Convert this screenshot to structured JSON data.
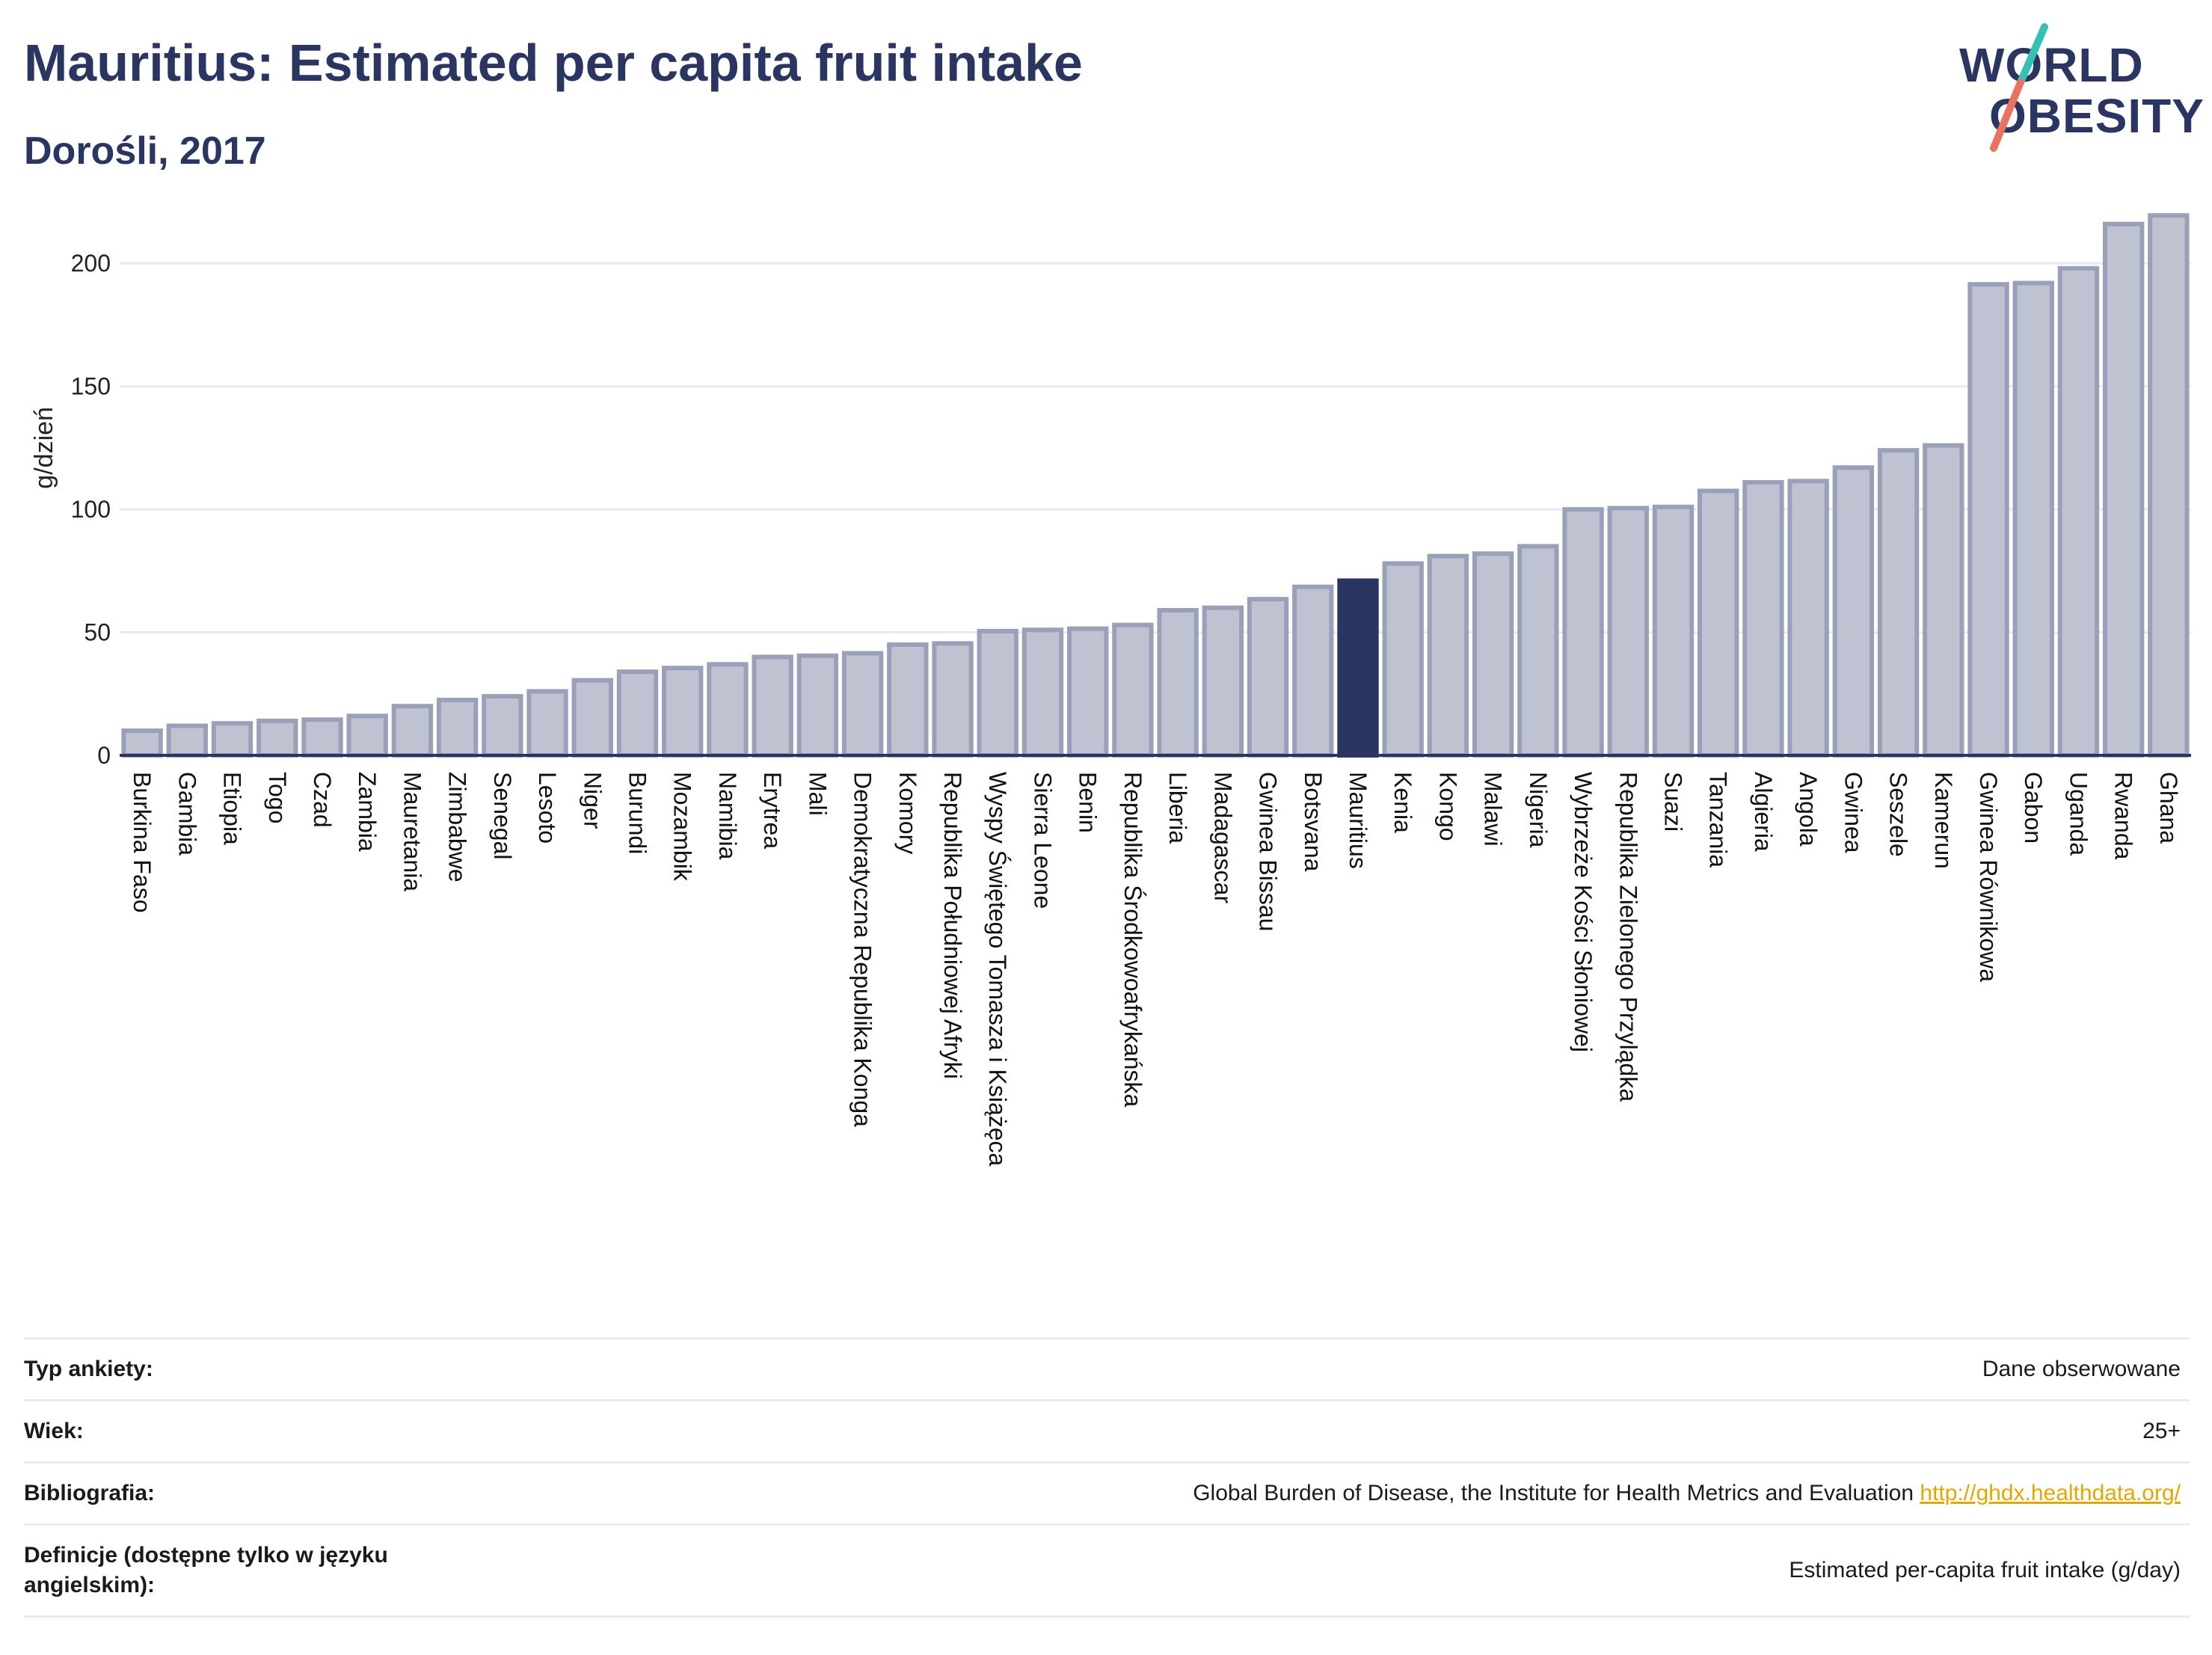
{
  "header": {
    "title": "Mauritius: Estimated per capita fruit intake",
    "subtitle": "Dorośli, 2017"
  },
  "logo": {
    "line1": "WORLD",
    "line2": "OBESITY",
    "colors": {
      "text": "#2b3562",
      "slash_top": "#35c0b6",
      "slash_bottom": "#e8735f"
    }
  },
  "chart_data": {
    "type": "bar",
    "title": "",
    "xlabel": "",
    "ylabel": "g/dzień",
    "ylim": [
      0,
      225
    ],
    "yticks": [
      0,
      50,
      100,
      150,
      200
    ],
    "grid": true,
    "highlight": "Mauritius",
    "colors": {
      "bar": "#bfc3d1",
      "bar_edge": "#9aa0b8",
      "highlight": "#2b3562",
      "grid": "#e8e9ef",
      "axis": "#2b3562"
    },
    "categories": [
      "Burkina Faso",
      "Gambia",
      "Etiopia",
      "Togo",
      "Czad",
      "Zambia",
      "Mauretania",
      "Zimbabwe",
      "Senegal",
      "Lesoto",
      "Niger",
      "Burundi",
      "Mozambik",
      "Namibia",
      "Erytrea",
      "Mali",
      "Demokratyczna Republika Konga",
      "Komory",
      "Republika Południowej Afryki",
      "Wyspy Świętego Tomasza i Książęca",
      "Sierra Leone",
      "Benin",
      "Republika Środkowoafrykańska",
      "Liberia",
      "Madagascar",
      "Gwinea Bissau",
      "Botsvana",
      "Mauritius",
      "Kenia",
      "Kongo",
      "Malawi",
      "Nigeria",
      "Wybrzeże Kości Słoniowej",
      "Republika Zielonego Przylądka",
      "Suazi",
      "Tanzania",
      "Algieria",
      "Angola",
      "Gwinea",
      "Seszele",
      "Kamerun",
      "Gwinea Równikowa",
      "Gabon",
      "Uganda",
      "Rwanda",
      "Ghana"
    ],
    "values": [
      10,
      12,
      13,
      14,
      14.5,
      16,
      20,
      22.5,
      24,
      26,
      30.5,
      34,
      35.5,
      37,
      40,
      40.5,
      41.5,
      45,
      45.5,
      50.5,
      51,
      51.5,
      53,
      59,
      60,
      63.5,
      68.5,
      71,
      78,
      81,
      82,
      85,
      100,
      100.5,
      101,
      107.5,
      111,
      111.5,
      117,
      124,
      126,
      191.5,
      192,
      198,
      216,
      219.5
    ]
  },
  "info": {
    "rows": [
      {
        "label": "Typ ankiety:",
        "value": "Dane obserwowane",
        "link": ""
      },
      {
        "label": "Wiek:",
        "value": "25+",
        "link": ""
      },
      {
        "label": "Bibliografia:",
        "value": "Global Burden of Disease, the Institute for Health Metrics and Evaluation",
        "link": "http://ghdx.healthdata.org/"
      },
      {
        "label": "Definicje (dostępne tylko w języku angielskim):",
        "value": "Estimated per-capita fruit intake (g/day)",
        "link": ""
      }
    ]
  }
}
